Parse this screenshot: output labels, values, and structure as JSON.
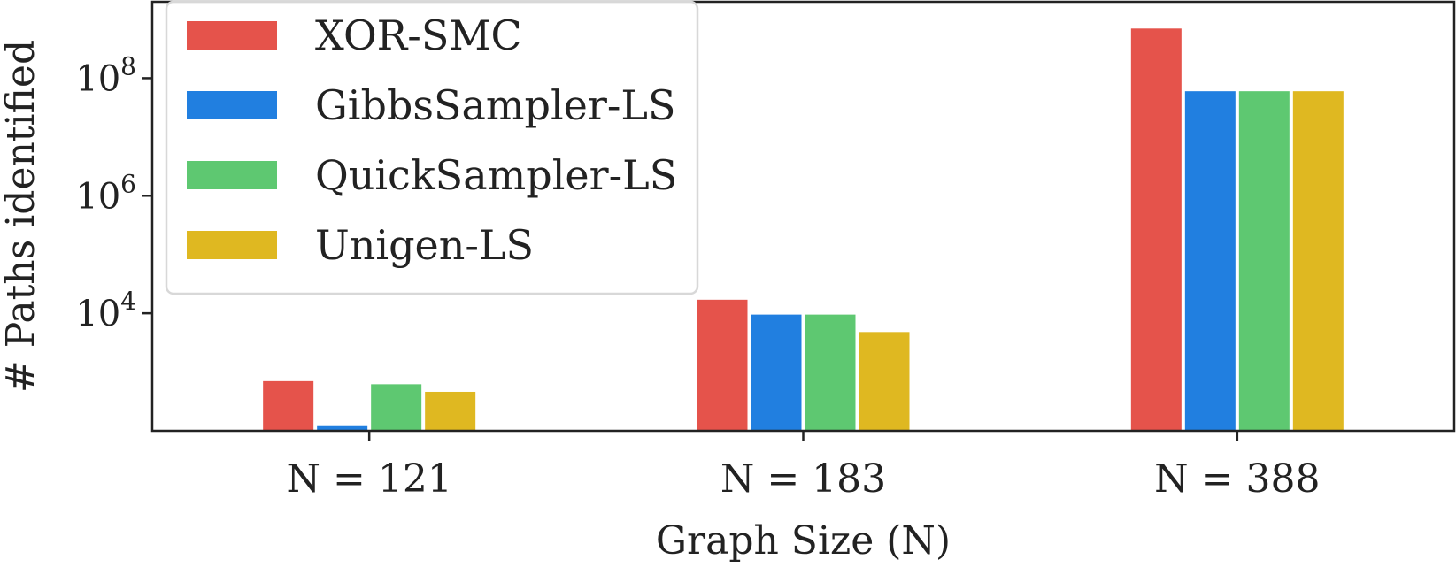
{
  "chart_data": {
    "type": "bar",
    "categories": [
      "N = 121",
      "N = 183",
      "N = 388"
    ],
    "series": [
      {
        "name": "XOR-SMC",
        "values": [
          700,
          17000,
          700000000
        ]
      },
      {
        "name": "GibbsSampler-LS",
        "values": [
          120,
          9500,
          60000000
        ]
      },
      {
        "name": "QuickSampler-LS",
        "values": [
          620,
          9500,
          60000000
        ]
      },
      {
        "name": "Unigen-LS",
        "values": [
          460,
          4800,
          60000000
        ]
      }
    ],
    "colors": [
      "#e5534b",
      "#217fe0",
      "#5ec871",
      "#dfb821"
    ],
    "xlabel": "Graph Size (N)",
    "ylabel": "# Paths identified",
    "yscale": "log",
    "ylim": [
      100,
      2000000000
    ],
    "yticks": [
      {
        "value": 10000,
        "label": "10",
        "exp": "4"
      },
      {
        "value": 1000000,
        "label": "10",
        "exp": "6"
      },
      {
        "value": 100000000,
        "label": "10",
        "exp": "8"
      }
    ],
    "grid": false,
    "legend_position": "top-left"
  }
}
